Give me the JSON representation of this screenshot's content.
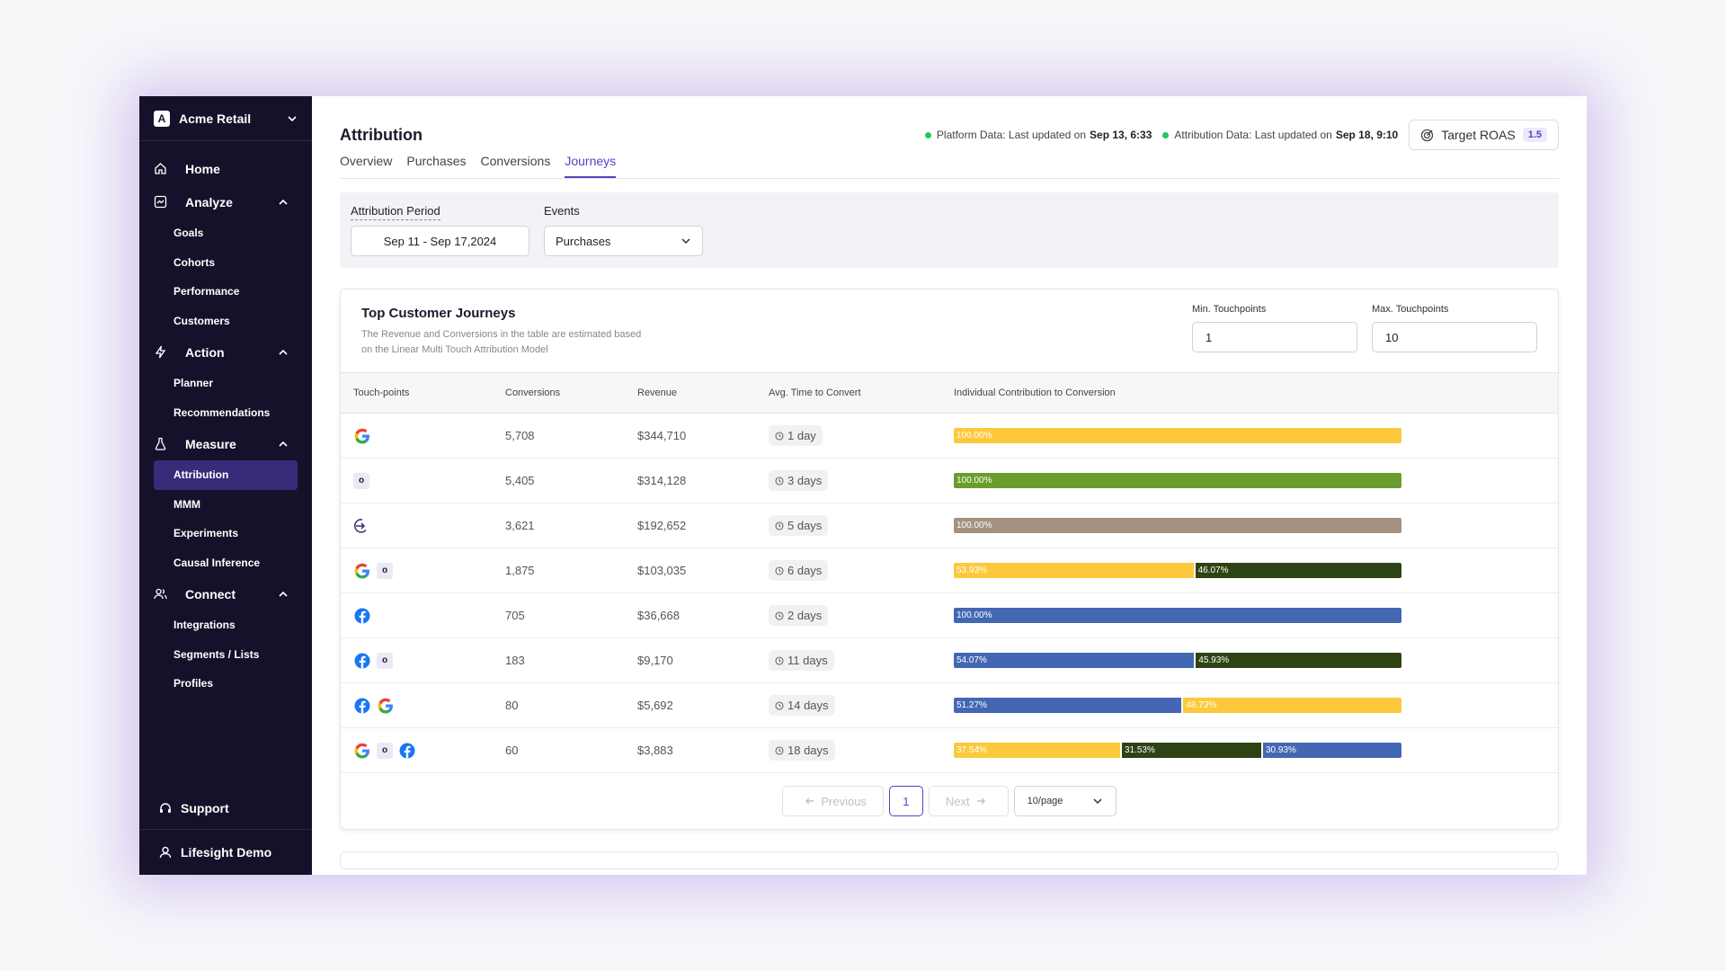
{
  "workspace": {
    "name": "Acme Retail",
    "logo_letter": "A"
  },
  "sidebar": {
    "items": [
      {
        "type": "top",
        "label": "Home",
        "icon": "home-icon"
      },
      {
        "type": "top",
        "label": "Analyze",
        "icon": "chart-icon"
      },
      {
        "type": "sub",
        "label": "Goals"
      },
      {
        "type": "sub",
        "label": "Cohorts"
      },
      {
        "type": "sub",
        "label": "Performance"
      },
      {
        "type": "sub",
        "label": "Customers"
      },
      {
        "type": "top",
        "label": "Action",
        "icon": "bolt-icon"
      },
      {
        "type": "sub",
        "label": "Planner"
      },
      {
        "type": "sub",
        "label": "Recommendations"
      },
      {
        "type": "top",
        "label": "Measure",
        "icon": "flask-icon"
      },
      {
        "type": "sub",
        "label": "Attribution",
        "active": true
      },
      {
        "type": "sub",
        "label": "MMM"
      },
      {
        "type": "sub",
        "label": "Experiments"
      },
      {
        "type": "sub",
        "label": "Causal Inference"
      },
      {
        "type": "top",
        "label": "Connect",
        "icon": "users-icon"
      },
      {
        "type": "sub",
        "label": "Integrations"
      },
      {
        "type": "sub",
        "label": "Segments / Lists"
      },
      {
        "type": "sub",
        "label": "Profiles"
      }
    ],
    "support_label": "Support",
    "user_label": "Lifesight Demo"
  },
  "header": {
    "title": "Attribution",
    "platform_status_prefix": "Platform Data: Last updated on",
    "platform_status_time": "Sep 13, 6:33",
    "attribution_status_prefix": "Attribution Data: Last updated on",
    "attribution_status_time": "Sep 18, 9:10",
    "target_roas_label": "Target ROAS",
    "target_roas_value": "1.5"
  },
  "tabs": [
    {
      "label": "Overview"
    },
    {
      "label": "Purchases"
    },
    {
      "label": "Conversions"
    },
    {
      "label": "Journeys",
      "active": true
    }
  ],
  "filters": {
    "period_label": "Attribution Period",
    "period_value": "Sep 11 - Sep 17,2024",
    "events_label": "Events",
    "events_value": "Purchases"
  },
  "journeys": {
    "title": "Top Customer Journeys",
    "subtitle": "The Revenue and Conversions in the table are estimated based on the Linear Multi Touch Attribution Model",
    "min_label": "Min. Touchpoints",
    "min_value": "1",
    "max_label": "Max. Touchpoints",
    "max_value": "10",
    "columns": [
      "Touch-points",
      "Conversions",
      "Revenue",
      "Avg. Time to Convert",
      "Individual Contribution to Conversion"
    ],
    "colors": {
      "google": "#fcc93c",
      "organic": "#2e4314",
      "direct": "#a39280",
      "facebook": "#4467b3",
      "google_solo": "#fcc93c",
      "organic_solo": "#6a9e2c"
    },
    "rows": [
      {
        "touchpoints": [
          "google-icon"
        ],
        "conversions": "5,708",
        "revenue": "$344,710",
        "time": "1 day",
        "segments": [
          {
            "pct": "100.00%",
            "value": 100,
            "color": "#fcc93c"
          }
        ]
      },
      {
        "touchpoints": [
          "organic-icon"
        ],
        "conversions": "5,405",
        "revenue": "$314,128",
        "time": "3 days",
        "segments": [
          {
            "pct": "100.00%",
            "value": 100,
            "color": "#6a9e2c"
          }
        ]
      },
      {
        "touchpoints": [
          "direct-icon"
        ],
        "conversions": "3,621",
        "revenue": "$192,652",
        "time": "5 days",
        "segments": [
          {
            "pct": "100.00%",
            "value": 100,
            "color": "#a39280"
          }
        ]
      },
      {
        "touchpoints": [
          "google-icon",
          "organic-icon"
        ],
        "conversions": "1,875",
        "revenue": "$103,035",
        "time": "6 days",
        "segments": [
          {
            "pct": "53.93%",
            "value": 53.93,
            "color": "#fcc93c"
          },
          {
            "pct": "46.07%",
            "value": 46.07,
            "color": "#2e4314"
          }
        ]
      },
      {
        "touchpoints": [
          "facebook-icon"
        ],
        "conversions": "705",
        "revenue": "$36,668",
        "time": "2 days",
        "segments": [
          {
            "pct": "100.00%",
            "value": 100,
            "color": "#4467b3"
          }
        ]
      },
      {
        "touchpoints": [
          "facebook-icon",
          "organic-icon"
        ],
        "conversions": "183",
        "revenue": "$9,170",
        "time": "11 days",
        "segments": [
          {
            "pct": "54.07%",
            "value": 54.07,
            "color": "#4467b3"
          },
          {
            "pct": "45.93%",
            "value": 45.93,
            "color": "#2e4314"
          }
        ]
      },
      {
        "touchpoints": [
          "facebook-icon",
          "google-icon"
        ],
        "conversions": "80",
        "revenue": "$5,692",
        "time": "14 days",
        "segments": [
          {
            "pct": "51.27%",
            "value": 51.27,
            "color": "#4467b3"
          },
          {
            "pct": "48.73%",
            "value": 48.73,
            "color": "#fcc93c"
          }
        ]
      },
      {
        "touchpoints": [
          "google-icon",
          "organic-icon",
          "facebook-icon"
        ],
        "conversions": "60",
        "revenue": "$3,883",
        "time": "18 days",
        "segments": [
          {
            "pct": "37.54%",
            "value": 37.54,
            "color": "#fcc93c"
          },
          {
            "pct": "31.53%",
            "value": 31.53,
            "color": "#2e4314"
          },
          {
            "pct": "30.93%",
            "value": 30.93,
            "color": "#4467b3"
          }
        ]
      }
    ]
  },
  "pagination": {
    "previous_label": "Previous",
    "page": "1",
    "next_label": "Next",
    "per_page": "10/page"
  }
}
